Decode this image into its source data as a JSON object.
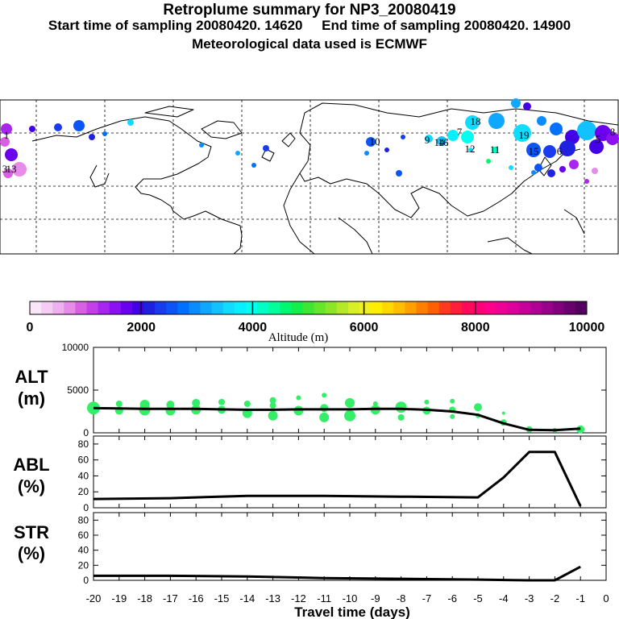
{
  "header": {
    "title": "Retroplume summary for NP3_20080419",
    "sampling_line": "Start time of sampling 20080420. 14620     End time of sampling 20080420. 14900",
    "met_line": "Meteorological data used is ECMWF"
  },
  "map": {
    "type": "scatter-map",
    "cluster_labels": [
      "1",
      "3",
      "13",
      "16",
      "18",
      "9",
      "19",
      "12",
      "7",
      "15",
      "14",
      "8",
      "10",
      "11",
      "6",
      "5"
    ]
  },
  "colorbar": {
    "title": "Altitude (m)",
    "tick_labels": [
      "0",
      "2000",
      "4000",
      "6000",
      "8000",
      "10000"
    ],
    "colors": [
      "#f9e6f9",
      "#f4ccf4",
      "#eeb0ee",
      "#e68ce8",
      "#d95fe3",
      "#c43fe8",
      "#a826f0",
      "#8c10f2",
      "#6a00ee",
      "#4400e6",
      "#2020e0",
      "#1a3cf0",
      "#0b55f6",
      "#0070ff",
      "#0a8cff",
      "#10a8ff",
      "#12c2ff",
      "#10dcff",
      "#08f0ff",
      "#00ffee",
      "#00ffc4",
      "#00ff9a",
      "#00f870",
      "#14ee4a",
      "#3ce632",
      "#64e62a",
      "#8ce628",
      "#b4e828",
      "#d8ee26",
      "#f0f020",
      "#ffee00",
      "#ffd800",
      "#ffbf00",
      "#ffa000",
      "#ff8000",
      "#ff6000",
      "#ff3a1e",
      "#ff1e3c",
      "#ff0a5a",
      "#ff0078",
      "#ff008c",
      "#ef0096",
      "#de009c",
      "#c8009a",
      "#b20096",
      "#9a008c",
      "#82007e",
      "#6a006e",
      "#540060"
    ]
  },
  "chart_data": [
    {
      "type": "scatter-line",
      "panel_label": "ALT",
      "unit_label": "(m)",
      "ylim": [
        0,
        10000
      ],
      "y_tick_labels": [
        "0",
        "5000",
        "10000"
      ],
      "xlim": [
        -20,
        0
      ],
      "line": {
        "x": [
          -20,
          -19,
          -18,
          -17,
          -16,
          -15,
          -14,
          -13,
          -12,
          -11,
          -10,
          -9,
          -8,
          -7,
          -6,
          -5,
          -4,
          -3,
          -2,
          -1
        ],
        "y": [
          2900,
          2850,
          2800,
          2800,
          2800,
          2750,
          2700,
          2700,
          2750,
          2750,
          2750,
          2800,
          2800,
          2700,
          2500,
          2100,
          1100,
          350,
          300,
          500
        ]
      },
      "points": [
        {
          "x": -20,
          "y": 2900,
          "s": 8
        },
        {
          "x": -19,
          "y": 2600,
          "s": 5
        },
        {
          "x": -19,
          "y": 3400,
          "s": 4
        },
        {
          "x": -18,
          "y": 2700,
          "s": 7
        },
        {
          "x": -18,
          "y": 3300,
          "s": 6
        },
        {
          "x": -17,
          "y": 2600,
          "s": 6
        },
        {
          "x": -17,
          "y": 3300,
          "s": 5
        },
        {
          "x": -16,
          "y": 2700,
          "s": 6
        },
        {
          "x": -16,
          "y": 3500,
          "s": 5
        },
        {
          "x": -15,
          "y": 2700,
          "s": 5
        },
        {
          "x": -15,
          "y": 3600,
          "s": 4
        },
        {
          "x": -14,
          "y": 2300,
          "s": 6
        },
        {
          "x": -14,
          "y": 3400,
          "s": 4
        },
        {
          "x": -13,
          "y": 2000,
          "s": 6
        },
        {
          "x": -13,
          "y": 3200,
          "s": 4
        },
        {
          "x": -13,
          "y": 3800,
          "s": 4
        },
        {
          "x": -12,
          "y": 2600,
          "s": 6
        },
        {
          "x": -12,
          "y": 4100,
          "s": 3
        },
        {
          "x": -11,
          "y": 1800,
          "s": 6
        },
        {
          "x": -11,
          "y": 2900,
          "s": 5
        },
        {
          "x": -11,
          "y": 4400,
          "s": 3
        },
        {
          "x": -10,
          "y": 2000,
          "s": 7
        },
        {
          "x": -10,
          "y": 3500,
          "s": 6
        },
        {
          "x": -9,
          "y": 2700,
          "s": 6
        },
        {
          "x": -9,
          "y": 3400,
          "s": 3
        },
        {
          "x": -8,
          "y": 1800,
          "s": 4
        },
        {
          "x": -8,
          "y": 3000,
          "s": 7
        },
        {
          "x": -7,
          "y": 2600,
          "s": 5
        },
        {
          "x": -7,
          "y": 3600,
          "s": 3
        },
        {
          "x": -6,
          "y": 1900,
          "s": 3
        },
        {
          "x": -6,
          "y": 2700,
          "s": 4
        },
        {
          "x": -6,
          "y": 3700,
          "s": 3
        },
        {
          "x": -5,
          "y": 3000,
          "s": 5
        },
        {
          "x": -5,
          "y": 2000,
          "s": 3
        },
        {
          "x": -4,
          "y": 1200,
          "s": 4
        },
        {
          "x": -4,
          "y": 2300,
          "s": 2
        },
        {
          "x": -3,
          "y": 400,
          "s": 4
        },
        {
          "x": -2,
          "y": 300,
          "s": 3
        },
        {
          "x": -1,
          "y": 400,
          "s": 5
        }
      ]
    },
    {
      "type": "line",
      "panel_label": "ABL",
      "unit_label": "(%)",
      "ylim": [
        0,
        90
      ],
      "y_tick_labels": [
        "0",
        "20",
        "40",
        "60",
        "80"
      ],
      "xlim": [
        -20,
        0
      ],
      "x": [
        -20,
        -17,
        -14,
        -11,
        -8,
        -5,
        -4,
        -3,
        -2,
        -1
      ],
      "y": [
        11,
        12,
        15,
        15,
        14,
        13,
        38,
        70,
        70,
        2
      ]
    },
    {
      "type": "line",
      "panel_label": "STR",
      "unit_label": "(%)",
      "ylim": [
        0,
        90
      ],
      "y_tick_labels": [
        "0",
        "20",
        "40",
        "60",
        "80"
      ],
      "xlim": [
        -20,
        0
      ],
      "x": [
        -20,
        -17,
        -14,
        -11,
        -8,
        -5,
        -3,
        -2,
        -1
      ],
      "y": [
        6,
        6,
        5,
        3,
        2,
        1,
        0,
        0,
        18
      ]
    }
  ],
  "x_axis": {
    "label": "Travel time (days)",
    "tick_labels": [
      "-20",
      "-19",
      "-18",
      "-17",
      "-16",
      "-15",
      "-14",
      "-13",
      "-12",
      "-11",
      "-10",
      "-9",
      "-8",
      "-7",
      "-6",
      "-5",
      "-4",
      "-3",
      "-2",
      "-1",
      "0"
    ]
  }
}
